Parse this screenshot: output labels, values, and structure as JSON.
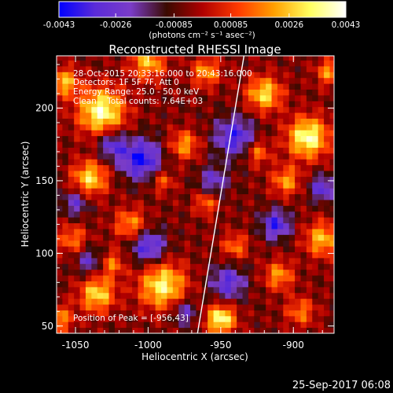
{
  "colorbar": {
    "tick_labels": [
      "-0.0043",
      "-0.0026",
      "-0.00085",
      "0.00085",
      "0.0026",
      "0.0043"
    ],
    "unit_label": "(photons cm⁻² s⁻¹ asec⁻²)",
    "stops": [
      "#0000ff",
      "#5a2bd8",
      "#7a3cc8",
      "#3a0a00",
      "#b00000",
      "#ff3a00",
      "#ffa000",
      "#ffff60",
      "#ffffff"
    ]
  },
  "chart_data": {
    "type": "heatmap",
    "title": "Reconstructed RHESSI Image",
    "xlabel": "Heliocentric X (arcsec)",
    "ylabel": "Heliocentric Y (arcsec)",
    "xlim": [
      -1063,
      -872
    ],
    "ylim": [
      45,
      236
    ],
    "x_ticks": [
      -1050,
      -1000,
      -950,
      -900
    ],
    "y_ticks": [
      50,
      100,
      150,
      200
    ],
    "value_range": [
      -0.0043,
      0.0043
    ],
    "annotations": [
      "28-Oct-2015 20:33:16.000 to 20:43:16.000",
      "Detectors: 1F 5F 7F, Att 0",
      "Energy Range: 25.0 - 50.0 keV",
      "Clean    Total counts: 7.64E+03"
    ],
    "peak_label": "Position of Peak = [-956,43]",
    "limb_line": [
      [
        -966,
        45
      ],
      [
        -934,
        236
      ]
    ]
  },
  "footer": {
    "date": "25-Sep-2017 06:08"
  }
}
